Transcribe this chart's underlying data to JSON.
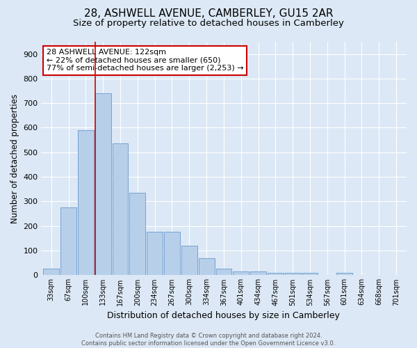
{
  "title": "28, ASHWELL AVENUE, CAMBERLEY, GU15 2AR",
  "subtitle": "Size of property relative to detached houses in Camberley",
  "xlabel": "Distribution of detached houses by size in Camberley",
  "ylabel": "Number of detached properties",
  "footer_line1": "Contains HM Land Registry data © Crown copyright and database right 2024.",
  "footer_line2": "Contains public sector information licensed under the Open Government Licence v3.0.",
  "bar_categories": [
    "33sqm",
    "67sqm",
    "100sqm",
    "133sqm",
    "167sqm",
    "200sqm",
    "234sqm",
    "267sqm",
    "300sqm",
    "334sqm",
    "367sqm",
    "401sqm",
    "434sqm",
    "467sqm",
    "501sqm",
    "534sqm",
    "567sqm",
    "601sqm",
    "634sqm",
    "668sqm",
    "701sqm"
  ],
  "bar_values": [
    27,
    275,
    590,
    740,
    535,
    335,
    175,
    175,
    120,
    68,
    25,
    15,
    15,
    10,
    10,
    10,
    0,
    10,
    0,
    0,
    0
  ],
  "bar_color": "#b8cfea",
  "bar_edge_color": "#6699cc",
  "vline_color": "#cc0000",
  "annotation_text": "28 ASHWELL AVENUE: 122sqm\n← 22% of detached houses are smaller (650)\n77% of semi-detached houses are larger (2,253) →",
  "annotation_box_color": "#ffffff",
  "annotation_box_edgecolor": "#cc0000",
  "ylim": [
    0,
    950
  ],
  "yticks": [
    0,
    100,
    200,
    300,
    400,
    500,
    600,
    700,
    800,
    900
  ],
  "background_color": "#dce8f5",
  "plot_background_color": "#dce8f5",
  "grid_color": "#ffffff",
  "title_fontsize": 11,
  "subtitle_fontsize": 9.5,
  "xlabel_fontsize": 9,
  "ylabel_fontsize": 8.5
}
